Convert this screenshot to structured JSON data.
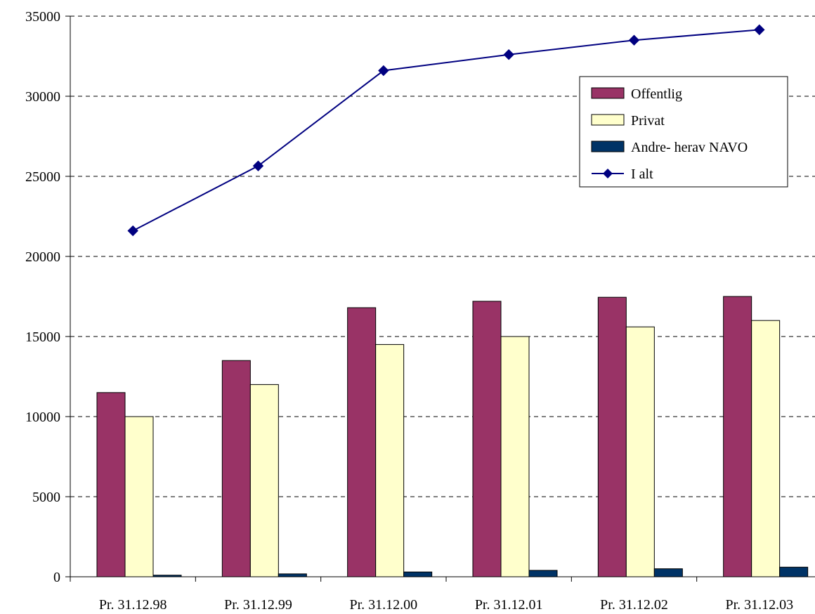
{
  "chart_data": {
    "type": "bar",
    "categories": [
      "Pr. 31.12.98",
      "Pr. 31.12.99",
      "Pr. 31.12.00",
      "Pr. 31.12.01",
      "Pr. 31.12.02",
      "Pr. 31.12.03"
    ],
    "series": [
      {
        "name": "Offentlig",
        "kind": "bar",
        "color": "#993366",
        "values": [
          11500,
          13500,
          16800,
          17200,
          17450,
          17500
        ]
      },
      {
        "name": "Privat",
        "kind": "bar",
        "color": "#FFFFCC",
        "values": [
          10000,
          12000,
          14500,
          15000,
          15600,
          16000
        ]
      },
      {
        "name": "Andre- herav NAVO",
        "kind": "bar",
        "color": "#003366",
        "values": [
          100,
          180,
          300,
          400,
          500,
          600
        ]
      },
      {
        "name": "I alt",
        "kind": "line",
        "marker": "diamond",
        "color": "#000080",
        "values": [
          21600,
          25650,
          31600,
          32600,
          33500,
          34150
        ]
      }
    ],
    "title": "",
    "xlabel": "",
    "ylabel": "",
    "ylim": [
      0,
      35000
    ],
    "yticks": [
      0,
      5000,
      10000,
      15000,
      20000,
      25000,
      30000,
      35000
    ],
    "grid": "horizontal dashed",
    "legend_position": "top-right"
  }
}
